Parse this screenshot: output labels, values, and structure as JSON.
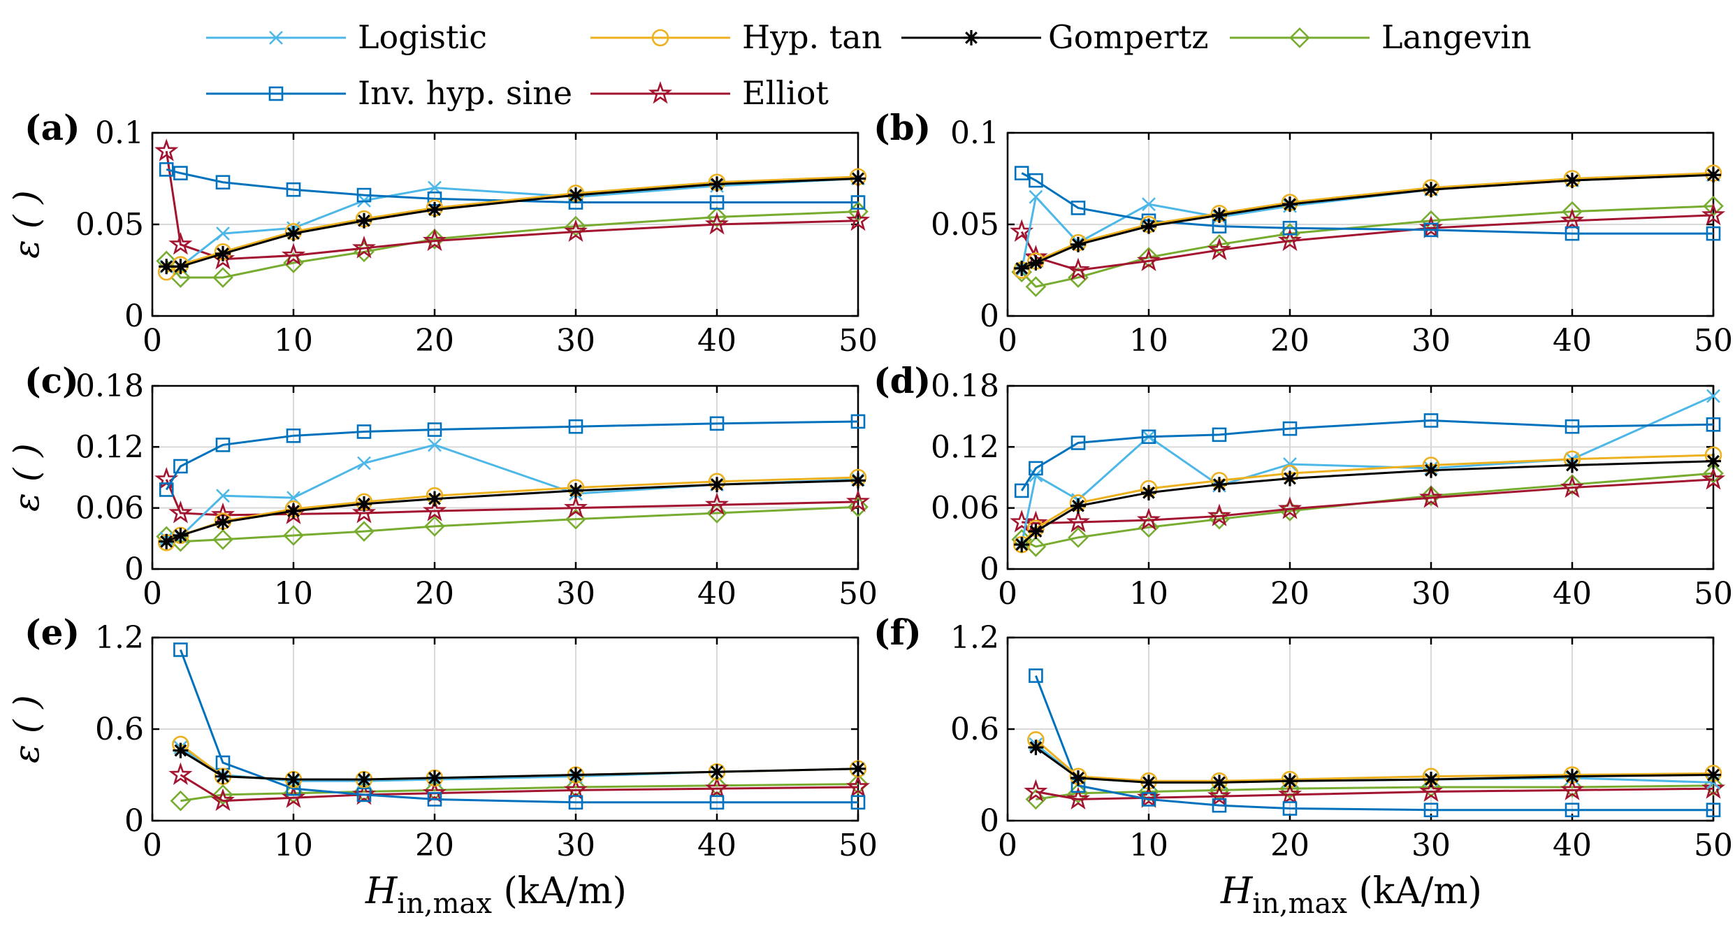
{
  "chart_data": {
    "type": "line",
    "x": [
      1,
      2,
      5,
      10,
      15,
      20,
      30,
      40,
      50
    ],
    "xlim": [
      0,
      50
    ],
    "xticks": [
      "0",
      "10",
      "20",
      "30",
      "40",
      "50"
    ],
    "xlabel_main": "H",
    "xlabel_sub": "in,max",
    "xlabel_unit": "(kA/m)",
    "ylabel": "ε ( )",
    "grid": true,
    "legend_position": "top",
    "series_styles": [
      {
        "name": "Logistic",
        "color": "#4db8e8",
        "marker": "x"
      },
      {
        "name": "Hyp. tan",
        "color": "#edb120",
        "marker": "circle"
      },
      {
        "name": "Gompertz",
        "color": "#000000",
        "marker": "asterisk"
      },
      {
        "name": "Langevin",
        "color": "#77ac30",
        "marker": "diamond"
      },
      {
        "name": "Inv. hyp. sine",
        "color": "#0072bd",
        "marker": "square"
      },
      {
        "name": "Elliot",
        "color": "#a2142f",
        "marker": "pentagram"
      }
    ],
    "panels": [
      {
        "label": "(a)",
        "ylim": [
          0,
          0.1
        ],
        "yticks": [
          "0",
          "0.05",
          "0.1"
        ],
        "series": [
          {
            "name": "Logistic",
            "values": [
              0.027,
              0.027,
              0.045,
              0.048,
              0.063,
              0.07,
              0.065,
              0.071,
              0.075
            ]
          },
          {
            "name": "Hyp. tan",
            "values": [
              0.024,
              0.028,
              0.035,
              0.046,
              0.053,
              0.059,
              0.067,
              0.073,
              0.076
            ]
          },
          {
            "name": "Gompertz",
            "values": [
              0.027,
              0.027,
              0.034,
              0.045,
              0.052,
              0.058,
              0.066,
              0.072,
              0.075
            ]
          },
          {
            "name": "Langevin",
            "values": [
              0.03,
              0.021,
              0.021,
              0.029,
              0.035,
              0.042,
              0.049,
              0.054,
              0.057
            ]
          },
          {
            "name": "Inv. hyp. sine",
            "values": [
              0.08,
              0.078,
              0.073,
              0.069,
              0.066,
              0.064,
              0.062,
              0.062,
              0.062
            ]
          },
          {
            "name": "Elliot",
            "values": [
              0.09,
              0.039,
              0.031,
              0.033,
              0.037,
              0.041,
              0.046,
              0.05,
              0.052
            ]
          }
        ]
      },
      {
        "label": "(b)",
        "ylim": [
          0,
          0.1
        ],
        "yticks": [
          "0",
          "0.05",
          "0.1"
        ],
        "series": [
          {
            "name": "Logistic",
            "values": [
              0.025,
              0.065,
              0.04,
              0.061,
              0.054,
              0.06,
              0.069,
              0.074,
              0.077
            ]
          },
          {
            "name": "Hyp. tan",
            "values": [
              0.025,
              0.03,
              0.04,
              0.05,
              0.056,
              0.062,
              0.07,
              0.075,
              0.078
            ]
          },
          {
            "name": "Gompertz",
            "values": [
              0.026,
              0.029,
              0.039,
              0.049,
              0.055,
              0.061,
              0.069,
              0.074,
              0.077
            ]
          },
          {
            "name": "Langevin",
            "values": [
              0.024,
              0.016,
              0.021,
              0.032,
              0.039,
              0.045,
              0.052,
              0.057,
              0.06
            ]
          },
          {
            "name": "Inv. hyp. sine",
            "values": [
              0.078,
              0.074,
              0.059,
              0.052,
              0.049,
              0.048,
              0.047,
              0.045,
              0.045
            ]
          },
          {
            "name": "Elliot",
            "values": [
              0.046,
              0.032,
              0.025,
              0.03,
              0.036,
              0.041,
              0.048,
              0.052,
              0.055
            ]
          }
        ]
      },
      {
        "label": "(c)",
        "ylim": [
          0,
          0.18
        ],
        "yticks": [
          "0",
          "0.06",
          "0.12",
          "0.18"
        ],
        "series": [
          {
            "name": "Logistic",
            "values": [
              0.03,
              0.032,
              0.072,
              0.07,
              0.104,
              0.122,
              0.074,
              0.083,
              0.088
            ]
          },
          {
            "name": "Hyp. tan",
            "values": [
              0.026,
              0.033,
              0.047,
              0.059,
              0.066,
              0.072,
              0.08,
              0.086,
              0.09
            ]
          },
          {
            "name": "Gompertz",
            "values": [
              0.027,
              0.033,
              0.046,
              0.057,
              0.064,
              0.069,
              0.077,
              0.083,
              0.087
            ]
          },
          {
            "name": "Langevin",
            "values": [
              0.032,
              0.027,
              0.029,
              0.033,
              0.037,
              0.042,
              0.049,
              0.055,
              0.061
            ]
          },
          {
            "name": "Inv. hyp. sine",
            "values": [
              0.078,
              0.101,
              0.122,
              0.131,
              0.135,
              0.137,
              0.14,
              0.143,
              0.145
            ]
          },
          {
            "name": "Elliot",
            "values": [
              0.088,
              0.055,
              0.053,
              0.054,
              0.055,
              0.057,
              0.06,
              0.063,
              0.066
            ]
          }
        ]
      },
      {
        "label": "(d)",
        "ylim": [
          0,
          0.18
        ],
        "yticks": [
          "0",
          "0.06",
          "0.12",
          "0.18"
        ],
        "series": [
          {
            "name": "Logistic",
            "values": [
              0.025,
              0.092,
              0.068,
              0.13,
              0.082,
              0.103,
              0.099,
              0.108,
              0.17
            ]
          },
          {
            "name": "Hyp. tan",
            "values": [
              0.024,
              0.04,
              0.065,
              0.079,
              0.087,
              0.094,
              0.102,
              0.108,
              0.112
            ]
          },
          {
            "name": "Gompertz",
            "values": [
              0.024,
              0.037,
              0.062,
              0.075,
              0.083,
              0.089,
              0.097,
              0.102,
              0.106
            ]
          },
          {
            "name": "Langevin",
            "values": [
              0.029,
              0.022,
              0.031,
              0.041,
              0.049,
              0.057,
              0.072,
              0.083,
              0.094
            ]
          },
          {
            "name": "Inv. hyp. sine",
            "values": [
              0.077,
              0.099,
              0.124,
              0.13,
              0.132,
              0.138,
              0.146,
              0.14,
              0.142
            ]
          },
          {
            "name": "Elliot",
            "values": [
              0.046,
              0.045,
              0.046,
              0.048,
              0.052,
              0.059,
              0.07,
              0.08,
              0.088
            ]
          }
        ]
      },
      {
        "label": "(e)",
        "ylim": [
          0,
          1.2
        ],
        "yticks": [
          "0",
          "0.6",
          "1.2"
        ],
        "series": [
          {
            "name": "Logistic",
            "values": [
              null,
              0.48,
              0.3,
              0.26,
              0.26,
              0.27,
              0.29,
              0.32,
              0.34
            ]
          },
          {
            "name": "Hyp. tan",
            "values": [
              null,
              0.5,
              0.29,
              0.27,
              0.27,
              0.28,
              0.3,
              0.32,
              0.34
            ]
          },
          {
            "name": "Gompertz",
            "values": [
              null,
              0.46,
              0.29,
              0.27,
              0.27,
              0.28,
              0.3,
              0.32,
              0.34
            ]
          },
          {
            "name": "Langevin",
            "values": [
              null,
              0.13,
              0.17,
              0.18,
              0.19,
              0.2,
              0.22,
              0.23,
              0.24
            ]
          },
          {
            "name": "Inv. hyp. sine",
            "values": [
              null,
              1.12,
              0.38,
              0.21,
              0.17,
              0.14,
              0.12,
              0.12,
              0.12
            ]
          },
          {
            "name": "Elliot",
            "values": [
              null,
              0.3,
              0.13,
              0.15,
              0.17,
              0.18,
              0.2,
              0.21,
              0.22
            ]
          }
        ]
      },
      {
        "label": "(f)",
        "ylim": [
          0,
          1.2
        ],
        "yticks": [
          "0",
          "0.6",
          "1.2"
        ],
        "series": [
          {
            "name": "Logistic",
            "values": [
              null,
              0.5,
              0.28,
              0.25,
              0.25,
              0.26,
              0.27,
              0.28,
              0.25
            ]
          },
          {
            "name": "Hyp. tan",
            "values": [
              null,
              0.53,
              0.29,
              0.26,
              0.26,
              0.27,
              0.29,
              0.3,
              0.31
            ]
          },
          {
            "name": "Gompertz",
            "values": [
              null,
              0.48,
              0.28,
              0.25,
              0.25,
              0.26,
              0.27,
              0.29,
              0.3
            ]
          },
          {
            "name": "Langevin",
            "values": [
              null,
              0.14,
              0.18,
              0.19,
              0.2,
              0.21,
              0.22,
              0.22,
              0.23
            ]
          },
          {
            "name": "Inv. hyp. sine",
            "values": [
              null,
              0.95,
              0.23,
              0.14,
              0.1,
              0.08,
              0.07,
              0.07,
              0.07
            ]
          },
          {
            "name": "Elliot",
            "values": [
              null,
              0.19,
              0.14,
              0.15,
              0.16,
              0.17,
              0.19,
              0.2,
              0.21
            ]
          }
        ]
      }
    ]
  }
}
